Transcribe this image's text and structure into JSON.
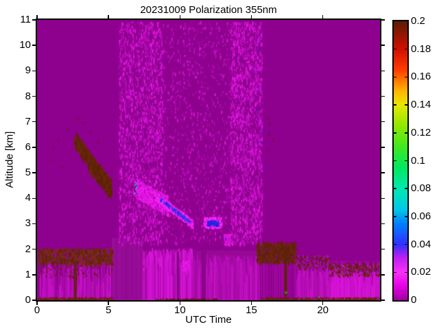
{
  "chart_data": {
    "type": "heatmap",
    "title": "20231009 Polarization 355nm",
    "xlabel": "UTC Time",
    "ylabel": "Altitude [km]",
    "xlim": [
      0,
      24
    ],
    "ylim": [
      0,
      11
    ],
    "xtick_values": [
      0,
      5,
      10,
      15,
      20
    ],
    "xtick_labels": [
      "0",
      "5",
      "10",
      "15",
      "20"
    ],
    "ytick_values": [
      0,
      1,
      2,
      3,
      4,
      5,
      6,
      7,
      8,
      9,
      10,
      11
    ],
    "ytick_labels": [
      "0",
      "1",
      "2",
      "3",
      "4",
      "5",
      "6",
      "7",
      "8",
      "9",
      "10",
      "11"
    ],
    "colorbar": {
      "min": 0,
      "max": 0.2,
      "tick_values": [
        0,
        0.02,
        0.04,
        0.06,
        0.08,
        0.1,
        0.12,
        0.14,
        0.16,
        0.18,
        0.2
      ],
      "tick_labels": [
        "0",
        "0.02",
        "0.04",
        "0.06",
        "0.08",
        "0.1",
        "0.12",
        "0.14",
        "0.16",
        "0.18",
        "0.2"
      ],
      "stops": [
        [
          0.0,
          "#A000A0"
        ],
        [
          0.01,
          "#E400E4"
        ],
        [
          0.02,
          "#F830F8"
        ],
        [
          0.03,
          "#C020F0"
        ],
        [
          0.04,
          "#3030FF"
        ],
        [
          0.055,
          "#0080FF"
        ],
        [
          0.065,
          "#00C8E8"
        ],
        [
          0.08,
          "#00E8B0"
        ],
        [
          0.095,
          "#00E860"
        ],
        [
          0.11,
          "#40E820"
        ],
        [
          0.125,
          "#90E800"
        ],
        [
          0.14,
          "#E8E800"
        ],
        [
          0.15,
          "#FFB400"
        ],
        [
          0.165,
          "#FF3C00"
        ],
        [
          0.18,
          "#D01000"
        ],
        [
          0.2,
          "#5A1C04"
        ]
      ]
    },
    "background_color": "#8E008E",
    "regions": [
      {
        "kind": "fill",
        "name": "background",
        "x": [
          0,
          24
        ],
        "y": [
          0,
          11
        ],
        "color": "#8E008E",
        "approx_value": 0.005
      },
      {
        "kind": "columns",
        "name": "bl-left-texture",
        "x": [
          0,
          5.25
        ],
        "y": [
          0,
          2.0
        ],
        "step": 0.07,
        "colors": [
          "#8E008E",
          "#930293",
          "#990599",
          "#A108A1"
        ]
      },
      {
        "kind": "colstreaks",
        "name": "bl-left-bright-streaks",
        "x": [
          0.05,
          5.2
        ],
        "ybase": 0,
        "h": [
          0.3,
          1.5
        ],
        "n": 130,
        "colors": [
          "#B00DB0",
          "#C511C5"
        ],
        "approx_value": 0.015
      },
      {
        "kind": "fill",
        "name": "bl-smooth-column",
        "x": [
          5.25,
          7.35
        ],
        "y": [
          0,
          2.45
        ],
        "color": "#950C95"
      },
      {
        "kind": "columns",
        "name": "bl-smooth-texture",
        "x": [
          5.25,
          7.35
        ],
        "y": [
          0,
          2.45
        ],
        "step": 0.12,
        "colors": [
          "#930A93",
          "#970D97",
          "#9B0F9B"
        ]
      },
      {
        "kind": "fill",
        "name": "bl-mid-base",
        "x": [
          7.35,
          15.6
        ],
        "y": [
          0,
          1.95
        ],
        "color": "#970897"
      },
      {
        "kind": "colstreaks",
        "name": "bl-mid-streaks-a",
        "x": [
          7.35,
          10.8
        ],
        "ybase": 0,
        "h": [
          0.9,
          2.05
        ],
        "n": 430,
        "colors": [
          "#A50BA5",
          "#B70EB7",
          "#C912C9",
          "#DB15DB"
        ],
        "approx_value": 0.015
      },
      {
        "kind": "colstreaks",
        "name": "bl-mid-streaks-b",
        "x": [
          10.8,
          15.6
        ],
        "ybase": 0,
        "h": [
          0.55,
          1.8
        ],
        "n": 430,
        "colors": [
          "#A50BA5",
          "#B70EB7",
          "#C912C9"
        ],
        "approx_value": 0.012
      },
      {
        "kind": "speckle",
        "name": "bl-mid-bright-blob",
        "x": [
          10.15,
          10.65
        ],
        "y": [
          1.15,
          1.6
        ],
        "n": 60,
        "colors": [
          "#E316E3",
          "#EE19EE"
        ],
        "w": [
          1,
          2
        ],
        "h": [
          2,
          4
        ],
        "approx_value": 0.02
      },
      {
        "kind": "vbar",
        "name": "bl-dark-line",
        "x": [
          9.8,
          9.93
        ],
        "y": [
          0,
          1.9
        ],
        "color": "#7D067D"
      },
      {
        "kind": "vbar",
        "name": "bl-dim-column",
        "x": [
          11.5,
          11.82
        ],
        "y": [
          0,
          2.0
        ],
        "color": "#8A058A"
      },
      {
        "kind": "columns",
        "name": "bl-right-texture",
        "x": [
          15.6,
          24
        ],
        "y": [
          0,
          1.55
        ],
        "step": 0.07,
        "colors": [
          "#8E008E",
          "#940394",
          "#9A069A",
          "#A209A2"
        ]
      },
      {
        "kind": "colstreaks",
        "name": "bl-right-mid-streaks",
        "x": [
          18.15,
          20.4
        ],
        "ybase": 0,
        "h": [
          0.4,
          1.3
        ],
        "n": 160,
        "colors": [
          "#B00DB0",
          "#C511C5"
        ]
      },
      {
        "kind": "colstreaks",
        "name": "bl-right-bright-streaks",
        "x": [
          20.45,
          23.95
        ],
        "ybase": 0,
        "h": [
          0.4,
          1.15
        ],
        "n": 240,
        "colors": [
          "#C511C5",
          "#D814D8"
        ],
        "approx_value": 0.018
      },
      {
        "kind": "speckle",
        "name": "noise-upper-main",
        "x": [
          5.7,
          15.75
        ],
        "y": [
          2.25,
          10.95
        ],
        "n": 2300,
        "colors": [
          "#A10AA1",
          "#B90FB9",
          "#D213D2"
        ],
        "w": [
          1,
          2
        ],
        "h": [
          2,
          5
        ],
        "approx_value": 0.01
      },
      {
        "kind": "speckle",
        "name": "noise-upper-left",
        "x": [
          5.7,
          8.8
        ],
        "y": [
          2.25,
          10.95
        ],
        "n": 1500,
        "colors": [
          "#AC0CAC",
          "#C611C6",
          "#E316E3"
        ],
        "w": [
          1,
          2
        ],
        "h": [
          2,
          6
        ],
        "approx_value": 0.015
      },
      {
        "kind": "speckle",
        "name": "noise-upper-right",
        "x": [
          13.5,
          15.75
        ],
        "y": [
          2.25,
          10.95
        ],
        "n": 1400,
        "colors": [
          "#AC0CAC",
          "#C611C6",
          "#E316E3"
        ],
        "w": [
          1,
          2
        ],
        "h": [
          2,
          6
        ],
        "approx_value": 0.015
      },
      {
        "kind": "speckle",
        "name": "bl-left-cap-speckle",
        "x": [
          0.05,
          5.25
        ],
        "y": [
          1.45,
          2.05
        ],
        "n": 850,
        "colors": [
          "#5E2208",
          "#6B2A0C",
          "#7A3110"
        ],
        "w": [
          1,
          2
        ],
        "h": [
          2,
          5
        ],
        "approx_value": 0.2
      },
      {
        "kind": "speckle",
        "name": "bl-left-sub-speckle",
        "x": [
          0.05,
          5.25
        ],
        "y": [
          0.9,
          1.45
        ],
        "n": 130,
        "colors": [
          "#5E2208"
        ],
        "w": [
          1,
          1
        ],
        "h": [
          2,
          3
        ],
        "approx_value": 0.2
      },
      {
        "kind": "speckle",
        "name": "bl-left-ground-line",
        "x": [
          0.05,
          5.3
        ],
        "y": [
          0,
          0.12
        ],
        "n": 320,
        "colors": [
          "#5E2208",
          "#6B2A0C"
        ],
        "w": [
          1,
          2
        ],
        "h": [
          1,
          3
        ],
        "approx_value": 0.2
      },
      {
        "kind": "vbar",
        "name": "dark-plume-early",
        "x": [
          2.6,
          2.78
        ],
        "y": [
          0.1,
          1.52
        ],
        "color": "#63250A",
        "approx_value": 0.2
      },
      {
        "kind": "speckle",
        "name": "bl-mid-ground-line",
        "x": [
          8.3,
          12.6
        ],
        "y": [
          0,
          0.07
        ],
        "n": 150,
        "colors": [
          "#4F1C06"
        ],
        "w": [
          1,
          2
        ],
        "h": [
          1,
          2
        ],
        "approx_value": 0.2
      },
      {
        "kind": "speckle",
        "name": "bl-right-cap-a",
        "x": [
          15.35,
          18.1
        ],
        "y": [
          1.5,
          2.3
        ],
        "n": 680,
        "colors": [
          "#5E2208",
          "#6B2A0C"
        ],
        "w": [
          1,
          2
        ],
        "h": [
          2,
          6
        ],
        "approx_value": 0.2
      },
      {
        "kind": "speckle",
        "name": "bl-right-cap-b",
        "x": [
          18.1,
          20.4
        ],
        "y": [
          1.25,
          1.78
        ],
        "n": 260,
        "colors": [
          "#5E2208",
          "#B00DB0"
        ],
        "w": [
          1,
          2
        ],
        "h": [
          2,
          4
        ],
        "approx_value": 0.2
      },
      {
        "kind": "speckle",
        "name": "bl-right-cap-c",
        "x": [
          20.4,
          23.95
        ],
        "y": [
          1.0,
          1.48
        ],
        "n": 320,
        "colors": [
          "#5E2208",
          "#6B2A0C",
          "#C511C5"
        ],
        "w": [
          1,
          2
        ],
        "h": [
          2,
          4
        ],
        "approx_value": 0.2
      },
      {
        "kind": "speckle",
        "name": "bl-right-ground-line",
        "x": [
          15.6,
          23.95
        ],
        "y": [
          0,
          0.12
        ],
        "n": 420,
        "colors": [
          "#5E2208",
          "#6B2A0C"
        ],
        "w": [
          1,
          2
        ],
        "h": [
          1,
          3
        ],
        "approx_value": 0.2
      },
      {
        "kind": "vbar",
        "name": "dark-plume-late",
        "x": [
          17.3,
          17.5
        ],
        "y": [
          0.15,
          2.1
        ],
        "color": "#5E2208",
        "approx_value": 0.2
      },
      {
        "kind": "points",
        "name": "green-dot",
        "points": [
          [
            17.42,
            0.3
          ]
        ],
        "size": 3,
        "color": "#1FA81F",
        "approx_value": 0.1
      },
      {
        "kind": "points",
        "name": "green-speck",
        "points": [
          [
            19.75,
            0.12
          ]
        ],
        "size": 2,
        "color": "#22C022",
        "approx_value": 0.1
      },
      {
        "kind": "band",
        "name": "aerosol-band-a",
        "from": [
          2.65,
          6.35
        ],
        "to": [
          4.4,
          5.0
        ],
        "thick": 0.5,
        "n": 650,
        "colors": [
          "#5E2208",
          "#6B2A0C"
        ],
        "w": [
          1,
          2
        ],
        "h": [
          3,
          9
        ],
        "approx_value": 0.2
      },
      {
        "kind": "band",
        "name": "aerosol-band-b",
        "from": [
          3.6,
          5.5
        ],
        "to": [
          5.15,
          4.45
        ],
        "thick": 0.62,
        "n": 750,
        "colors": [
          "#5E2208",
          "#6B2A0C"
        ],
        "w": [
          1,
          2
        ],
        "h": [
          3,
          9
        ],
        "approx_value": 0.2
      },
      {
        "kind": "points",
        "name": "left-dark-specks",
        "points": [
          [
            1.15,
            5.95
          ],
          [
            0.95,
            5.5
          ],
          [
            1.5,
            6.3
          ],
          [
            2.1,
            6.7
          ],
          [
            3.3,
            6.95
          ],
          [
            2.85,
            7.1
          ],
          [
            1.75,
            5.2
          ],
          [
            3.75,
            6.6
          ],
          [
            4.3,
            6.2
          ]
        ],
        "size": 2,
        "color": "#5E2208",
        "approx_value": 0.2
      },
      {
        "kind": "band",
        "name": "cloud-fuzz",
        "from": [
          6.95,
          4.4
        ],
        "to": [
          9.2,
          3.7
        ],
        "thick": 0.75,
        "n": 650,
        "colors": [
          "#C611C6",
          "#E316E3",
          "#F81CF8"
        ],
        "w": [
          1,
          2
        ],
        "h": [
          2,
          4
        ],
        "approx_value": 0.02
      },
      {
        "kind": "band",
        "name": "cloud-streak",
        "from": [
          8.3,
          4.1
        ],
        "to": [
          10.9,
          3.0
        ],
        "thick": 0.3,
        "n": 480,
        "colors": [
          "#E316E3",
          "#FF2BFF"
        ],
        "w": [
          1,
          2
        ],
        "h": [
          2,
          4
        ],
        "approx_value": 0.025
      },
      {
        "kind": "band",
        "name": "cloud-core-blue",
        "from": [
          8.6,
          4.0
        ],
        "to": [
          10.75,
          3.05
        ],
        "thick": 0.12,
        "n": 120,
        "colors": [
          "#2222DD",
          "#3A3AF0"
        ],
        "w": [
          1,
          2
        ],
        "h": [
          2,
          3
        ],
        "approx_value": 0.05
      },
      {
        "kind": "points",
        "name": "cloud-cyan-spots",
        "points": [
          [
            6.88,
            4.52
          ],
          [
            6.92,
            4.35
          ],
          [
            6.84,
            4.2
          ],
          [
            7.0,
            4.44
          ],
          [
            6.9,
            4.62
          ]
        ],
        "size": 2,
        "color": "#00D8D8",
        "approx_value": 0.07
      },
      {
        "kind": "speckle",
        "name": "cloud-blob-rim",
        "x": [
          11.62,
          12.9
        ],
        "y": [
          2.85,
          3.28
        ],
        "n": 270,
        "colors": [
          "#E316E3",
          "#FF2BFF"
        ],
        "w": [
          1,
          2
        ],
        "h": [
          2,
          3
        ],
        "approx_value": 0.02
      },
      {
        "kind": "speckle",
        "name": "cloud-blob-core",
        "x": [
          11.85,
          12.68
        ],
        "y": [
          2.95,
          3.14
        ],
        "n": 95,
        "colors": [
          "#2222DD",
          "#2A2AE8"
        ],
        "w": [
          1,
          2
        ],
        "h": [
          2,
          3
        ],
        "approx_value": 0.05
      },
      {
        "kind": "speckle",
        "name": "cloud-small-blob",
        "x": [
          13.05,
          13.5
        ],
        "y": [
          2.15,
          2.62
        ],
        "n": 120,
        "colors": [
          "#E316E3",
          "#D213D2"
        ],
        "w": [
          1,
          2
        ],
        "h": [
          2,
          3
        ],
        "approx_value": 0.02
      },
      {
        "kind": "points",
        "name": "cloud-small-blob-core",
        "points": [
          [
            13.2,
            2.4
          ]
        ],
        "size": 2,
        "color": "#2A2AE8",
        "approx_value": 0.05
      },
      {
        "kind": "points",
        "name": "blue-dots-right",
        "points": [
          [
            15.35,
            10.15
          ],
          [
            15.5,
            9.85
          ],
          [
            15.3,
            9.0
          ],
          [
            15.55,
            8.3
          ],
          [
            15.45,
            7.4
          ],
          [
            15.75,
            7.0
          ],
          [
            15.85,
            6.6
          ],
          [
            15.6,
            6.2
          ],
          [
            15.9,
            5.2
          ],
          [
            15.7,
            10.5
          ]
        ],
        "size": 2,
        "color": "#2A30E8",
        "approx_value": 0.05
      },
      {
        "kind": "points",
        "name": "maroon-dashes-right",
        "points": [
          [
            16.15,
            7.15
          ],
          [
            16.3,
            6.9
          ],
          [
            16.25,
            6.5
          ],
          [
            16.5,
            6.3
          ],
          [
            16.2,
            5.9
          ]
        ],
        "size": 2,
        "color": "#5E2208",
        "approx_value": 0.2
      },
      {
        "kind": "points",
        "name": "top-edge-specks",
        "points": [
          [
            10.4,
            10.92
          ],
          [
            14.95,
            10.92
          ]
        ],
        "size": 2,
        "color": "#431504",
        "approx_value": 0.2
      }
    ]
  }
}
